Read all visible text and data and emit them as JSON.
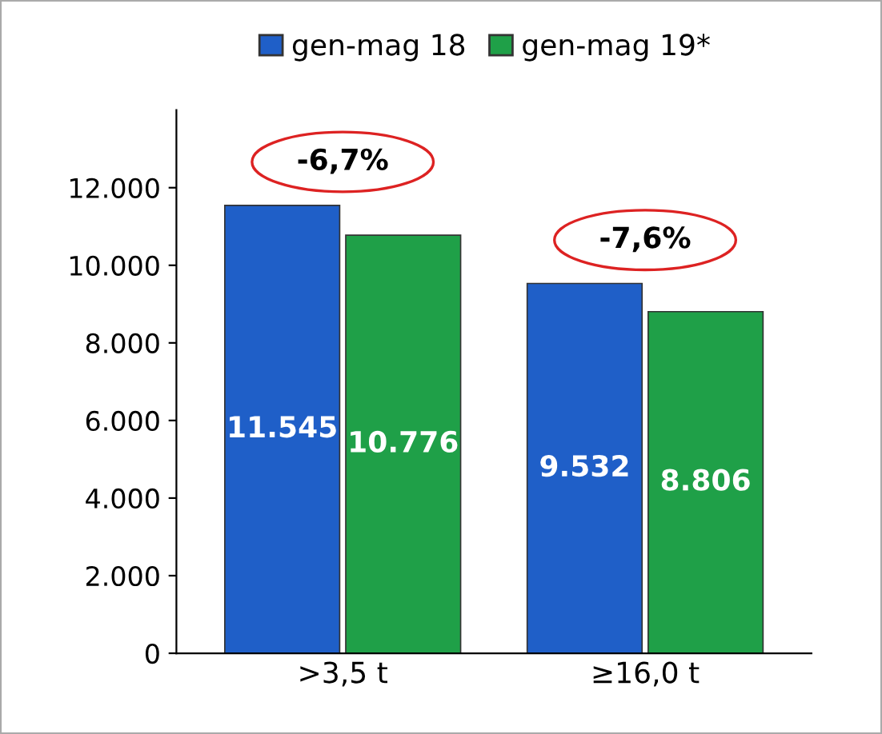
{
  "chart_data": {
    "type": "bar",
    "categories": [
      ">3,5 t",
      "≥16,0 t"
    ],
    "series": [
      {
        "name": "gen-mag 18",
        "color": "#1f5fc8",
        "values": [
          11545,
          9532
        ],
        "value_labels": [
          "11.545",
          "9.532"
        ]
      },
      {
        "name": "gen-mag 19*",
        "color": "#1fa048",
        "values": [
          10776,
          8806
        ],
        "value_labels": [
          "10.776",
          "8.806"
        ]
      }
    ],
    "ylim": [
      0,
      14000
    ],
    "yticks": [
      {
        "value": 0,
        "label": "0"
      },
      {
        "value": 2000,
        "label": "2.000"
      },
      {
        "value": 4000,
        "label": "4.000"
      },
      {
        "value": 6000,
        "label": "6.000"
      },
      {
        "value": 8000,
        "label": "8.000"
      },
      {
        "value": 10000,
        "label": "10.000"
      },
      {
        "value": 12000,
        "label": "12.000"
      }
    ],
    "annotations": [
      "-6,7%",
      "-7,6%"
    ],
    "grid": false,
    "legend": "top"
  }
}
